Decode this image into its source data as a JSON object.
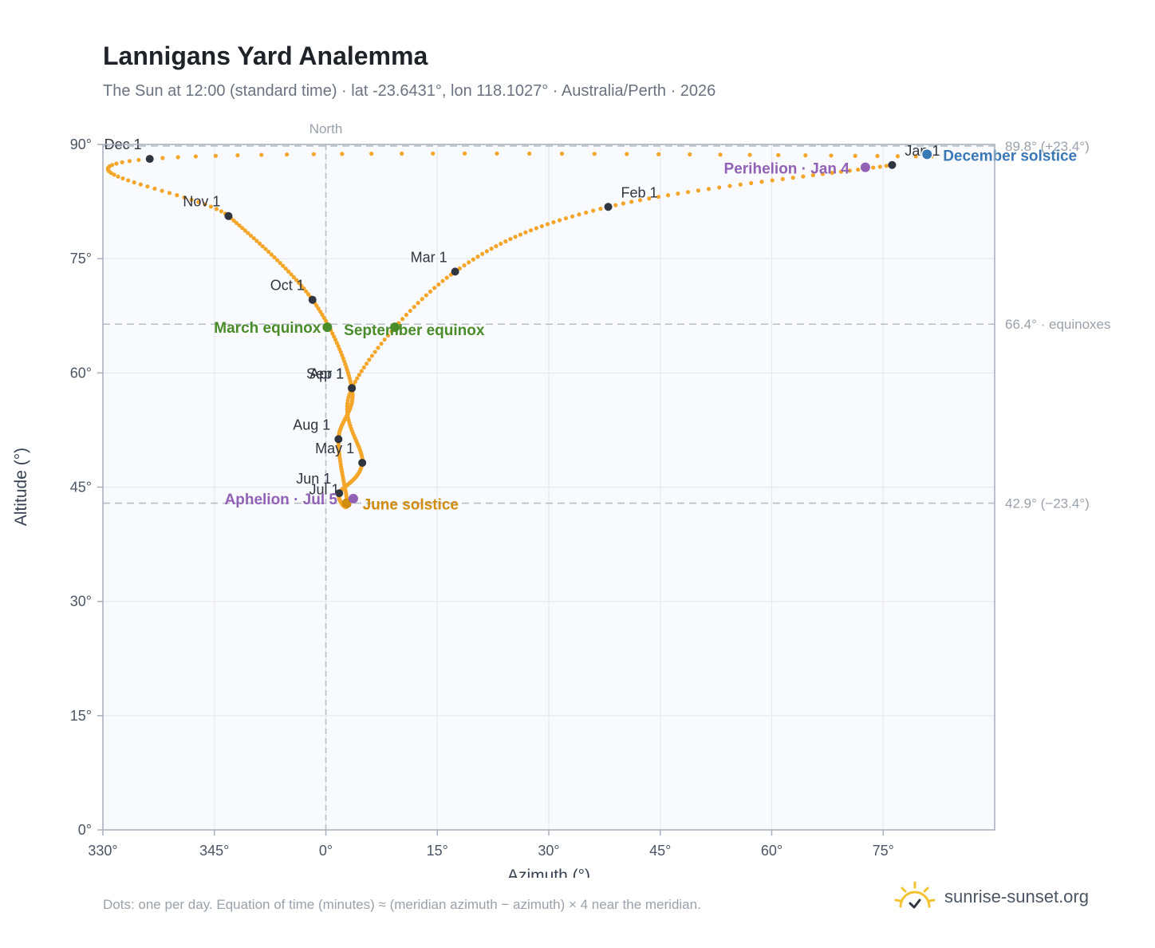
{
  "chart": {
    "title": "Lannigans Yard Analemma",
    "subtitle": "The Sun at 12:00 (standard time) · lat -23.6431°, lon 118.1027° · Australia/Perth · 2026",
    "footnote": "Dots: one per day. Equation of time (minutes) ≈ (meridian azimuth − azimuth) × 4 near the meridian.",
    "brand": "sunrise-sunset.org"
  },
  "colors": {
    "track": "#f4a62a",
    "month_marker": "#2f3640",
    "equinox": "#4a8c2a",
    "june_solstice": "#d08c0c",
    "december_solstice": "#3a78b5",
    "apsis": "#9061b5",
    "grid": "#e5e9ef",
    "reference_line": "#b8bec8",
    "plot_background": "#f8fafd",
    "logo": "#f2c230"
  },
  "chart_data": {
    "type": "scatter",
    "xlabel": "Azimuth (°)",
    "ylabel": "Altitude (°)",
    "xlim": [
      330,
      450
    ],
    "ylim": [
      0,
      90
    ],
    "x_ticks": [
      {
        "value": 330,
        "label": "330°"
      },
      {
        "value": 345,
        "label": "345°"
      },
      {
        "value": 360,
        "label": "0°"
      },
      {
        "value": 375,
        "label": "15°"
      },
      {
        "value": 390,
        "label": "30°"
      },
      {
        "value": 405,
        "label": "45°"
      },
      {
        "value": 420,
        "label": "60°"
      },
      {
        "value": 435,
        "label": "75°"
      }
    ],
    "y_ticks": [
      {
        "value": 0,
        "label": "0°"
      },
      {
        "value": 15,
        "label": "15°"
      },
      {
        "value": 30,
        "label": "30°"
      },
      {
        "value": 45,
        "label": "45°"
      },
      {
        "value": 60,
        "label": "60°"
      },
      {
        "value": 75,
        "label": "75°"
      },
      {
        "value": 90,
        "label": "90°"
      }
    ],
    "grid": true,
    "north_label": "North",
    "reference_lines": [
      {
        "altitude": 89.8,
        "label": "89.8° (+23.4°)"
      },
      {
        "altitude": 66.4,
        "label": "66.4° · equinoxes"
      },
      {
        "altitude": 42.9,
        "label": "42.9° (−23.4°)"
      }
    ],
    "month_markers": [
      {
        "label": "Jan 1",
        "az": 76.2,
        "alt": 87.3
      },
      {
        "label": "Feb 1",
        "az": 38.0,
        "alt": 81.8
      },
      {
        "label": "Mar 1",
        "az": 17.4,
        "alt": 73.3
      },
      {
        "label": "Apr 1",
        "az": 3.5,
        "alt": 58.0
      },
      {
        "label": "May 1",
        "az": 4.9,
        "alt": 48.2
      },
      {
        "label": "Jun 1",
        "az": 1.8,
        "alt": 44.2
      },
      {
        "label": "Jul 1",
        "az": 2.9,
        "alt": 42.8
      },
      {
        "label": "Aug 1",
        "az": 1.7,
        "alt": 51.3
      },
      {
        "label": "Sep 1",
        "az": 3.5,
        "alt": 58.0
      },
      {
        "label": "Oct 1",
        "az": -1.8,
        "alt": 69.6
      },
      {
        "label": "Nov 1",
        "az": -13.1,
        "alt": 80.6
      },
      {
        "label": "Dec 1",
        "az": -23.7,
        "alt": 88.1
      }
    ],
    "events": [
      {
        "label": "March equinox",
        "az": 0.2,
        "alt": 66.0,
        "kind": "equinox"
      },
      {
        "label": "September equinox",
        "az": 9.3,
        "alt": 66.0,
        "kind": "equinox"
      },
      {
        "label": "June solstice",
        "az": 2.8,
        "alt": 42.9,
        "kind": "june_solstice"
      },
      {
        "label": "December solstice",
        "az": 80.9,
        "alt": 88.7,
        "kind": "december_solstice"
      },
      {
        "label": "Perihelion · Jan 4",
        "az": 72.6,
        "alt": 87.0,
        "kind": "apsis"
      },
      {
        "label": "Aphelion · Jul 5",
        "az": 3.7,
        "alt": 43.5,
        "kind": "apsis"
      }
    ]
  }
}
